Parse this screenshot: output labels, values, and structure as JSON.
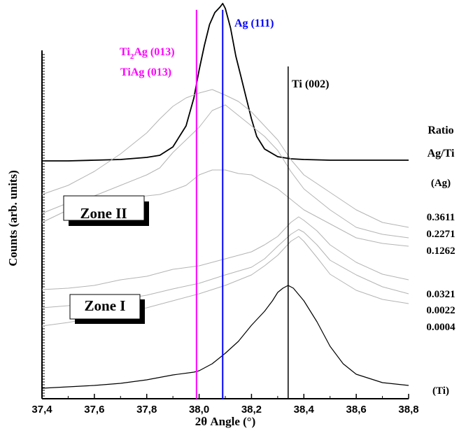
{
  "chart_data": {
    "type": "line",
    "title": "",
    "xlabel": "2θ Angle (°)",
    "ylabel": "Counts (arb. units)",
    "xlim": [
      37.4,
      38.8
    ],
    "x_ticks": [
      "37,4",
      "37,6",
      "37,8",
      "38,0",
      "38,2",
      "38,4",
      "38,6",
      "38,8"
    ],
    "legend_title": [
      "Ratio",
      "Ag/Ti"
    ],
    "reference_lines": [
      {
        "label": "Ti₂Ag (013)",
        "label_main": "Ti",
        "label_sub": "2",
        "label_rest": "Ag (013)",
        "x": 37.99,
        "color": "#ff00ff"
      },
      {
        "label": "TiAg (013)",
        "x": 37.99,
        "color": "#ff00ff"
      },
      {
        "label": "Ag (111)",
        "x": 38.09,
        "color": "#0000ff"
      },
      {
        "label": "Ti (002)",
        "x": 38.34,
        "color": "#000000"
      }
    ],
    "zones": [
      "Zone II",
      "Zone I"
    ],
    "series": [
      {
        "name": "(Ag)",
        "color": "#000000",
        "width": 1.8,
        "x": [
          37.4,
          37.5,
          37.6,
          37.7,
          37.8,
          37.85,
          37.9,
          37.95,
          37.98,
          38.0,
          38.02,
          38.04,
          38.06,
          38.08,
          38.09,
          38.1,
          38.12,
          38.14,
          38.16,
          38.18,
          38.2,
          38.22,
          38.25,
          38.3,
          38.35,
          38.4,
          38.5,
          38.6,
          38.7,
          38.8
        ],
        "y": [
          230,
          230,
          229,
          228,
          225,
          222,
          210,
          180,
          140,
          100,
          65,
          35,
          18,
          10,
          5,
          12,
          40,
          80,
          110,
          140,
          170,
          195,
          213,
          224,
          227,
          228,
          229,
          229,
          229,
          229
        ]
      },
      {
        "name": "0.3611",
        "color": "#b4b4b4",
        "width": 1,
        "x": [
          37.4,
          37.5,
          37.6,
          37.7,
          37.8,
          37.85,
          37.9,
          37.95,
          38.0,
          38.05,
          38.1,
          38.15,
          38.2,
          38.25,
          38.3,
          38.35,
          38.4,
          38.5,
          38.6,
          38.7,
          38.8
        ],
        "y": [
          278,
          265,
          245,
          220,
          190,
          170,
          152,
          140,
          133,
          128,
          136,
          145,
          160,
          180,
          200,
          228,
          250,
          275,
          300,
          318,
          325
        ]
      },
      {
        "name": "0.2271",
        "color": "#b4b4b4",
        "width": 1,
        "x": [
          37.4,
          37.5,
          37.6,
          37.7,
          37.8,
          37.85,
          37.9,
          37.95,
          38.0,
          38.05,
          38.1,
          38.15,
          38.2,
          38.25,
          38.3,
          38.35,
          38.4,
          38.5,
          38.6,
          38.7,
          38.8
        ],
        "y": [
          305,
          290,
          280,
          265,
          250,
          240,
          218,
          200,
          182,
          158,
          150,
          165,
          180,
          195,
          215,
          245,
          270,
          300,
          325,
          335,
          340
        ]
      },
      {
        "name": "0.1262",
        "color": "#b4b4b4",
        "width": 1,
        "x": [
          37.4,
          37.5,
          37.6,
          37.7,
          37.8,
          37.85,
          37.9,
          37.95,
          38.0,
          38.05,
          38.1,
          38.15,
          38.2,
          38.25,
          38.3,
          38.35,
          38.4,
          38.5,
          38.6,
          38.7,
          38.8
        ],
        "y": [
          318,
          300,
          290,
          283,
          280,
          278,
          272,
          265,
          250,
          243,
          243,
          248,
          250,
          260,
          270,
          285,
          300,
          320,
          340,
          348,
          352
        ]
      },
      {
        "name": "0.0321",
        "color": "#b4b4b4",
        "width": 1,
        "x": [
          37.4,
          37.5,
          37.6,
          37.7,
          37.8,
          37.9,
          38.0,
          38.1,
          38.2,
          38.25,
          38.3,
          38.35,
          38.38,
          38.4,
          38.45,
          38.5,
          38.6,
          38.7,
          38.8
        ],
        "y": [
          414,
          412,
          408,
          400,
          395,
          385,
          380,
          370,
          360,
          350,
          338,
          318,
          310,
          315,
          330,
          350,
          375,
          392,
          400
        ]
      },
      {
        "name": "0.0022",
        "color": "#b4b4b4",
        "width": 1,
        "x": [
          37.4,
          37.5,
          37.6,
          37.7,
          37.8,
          37.9,
          38.0,
          38.1,
          38.2,
          38.25,
          38.3,
          38.35,
          38.38,
          38.4,
          38.45,
          38.5,
          38.6,
          38.7,
          38.8
        ],
        "y": [
          440,
          437,
          433,
          428,
          422,
          413,
          405,
          393,
          382,
          370,
          352,
          335,
          328,
          332,
          350,
          372,
          393,
          410,
          420
        ]
      },
      {
        "name": "0.0004",
        "color": "#b4b4b4",
        "width": 1,
        "x": [
          37.4,
          37.5,
          37.6,
          37.7,
          37.8,
          37.9,
          38.0,
          38.1,
          38.2,
          38.25,
          38.3,
          38.35,
          38.38,
          38.4,
          38.45,
          38.5,
          38.6,
          38.7,
          38.8
        ],
        "y": [
          466,
          461,
          454,
          447,
          440,
          430,
          420,
          408,
          393,
          380,
          365,
          345,
          338,
          345,
          368,
          392,
          415,
          428,
          434
        ]
      },
      {
        "name": "(Ti)",
        "color": "#000000",
        "width": 1.2,
        "x": [
          37.4,
          37.5,
          37.6,
          37.7,
          37.8,
          37.9,
          37.98,
          38.0,
          38.05,
          38.1,
          38.15,
          38.2,
          38.25,
          38.28,
          38.3,
          38.32,
          38.34,
          38.36,
          38.4,
          38.45,
          38.5,
          38.55,
          38.6,
          38.7,
          38.8
        ],
        "y": [
          555,
          553,
          551,
          548,
          543,
          536,
          532,
          530,
          520,
          505,
          488,
          465,
          445,
          430,
          418,
          412,
          408,
          412,
          430,
          460,
          495,
          520,
          535,
          547,
          551
        ]
      }
    ]
  }
}
